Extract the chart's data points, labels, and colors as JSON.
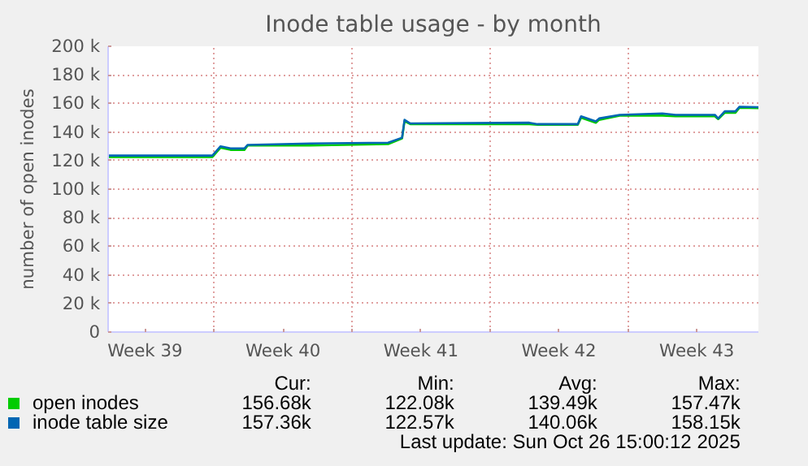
{
  "chart_data": {
    "type": "line",
    "title": "Inode table usage - by month",
    "ylabel": "number of open inodes",
    "x": [
      "2025-09-23T15:00",
      "2025-09-28T22:00",
      "2025-09-29T08:00",
      "2025-09-29T20:00",
      "2025-09-30T13:00",
      "2025-09-30T17:00",
      "2025-10-03T21:00",
      "2025-10-07T20:00",
      "2025-10-08T13:00",
      "2025-10-08T16:00",
      "2025-10-08T23:00",
      "2025-10-15T00:00",
      "2025-10-15T10:00",
      "2025-10-17T11:00",
      "2025-10-17T15:00",
      "2025-10-18T09:00",
      "2025-10-18T13:00",
      "2025-10-19T14:00",
      "2025-10-21T18:00",
      "2025-10-22T10:00",
      "2025-10-24T10:00",
      "2025-10-24T14:00",
      "2025-10-24T22:00",
      "2025-10-25T11:00",
      "2025-10-25T16:00",
      "2025-10-26T15:00"
    ],
    "series": [
      {
        "name": "open inodes",
        "color": "#00cc00",
        "values": [
          122500,
          122500,
          129000,
          127500,
          127500,
          130500,
          130500,
          131500,
          135500,
          147500,
          145500,
          145500,
          145000,
          145000,
          150000,
          146500,
          148500,
          151500,
          151500,
          151000,
          151000,
          149000,
          153500,
          153500,
          157000,
          156680
        ]
      },
      {
        "name": "inode table size",
        "color": "#0066b3",
        "values": [
          123500,
          123500,
          130000,
          128500,
          128500,
          131000,
          132000,
          132500,
          136000,
          148500,
          146000,
          146500,
          145500,
          145500,
          151000,
          147500,
          149500,
          152000,
          153000,
          152000,
          152000,
          149500,
          154500,
          154500,
          157700,
          157360
        ]
      }
    ],
    "xlim": [
      "2025-09-23T15:00",
      "2025-10-26T15:00"
    ],
    "xticks": [
      {
        "value": "2025-09-25T12:00",
        "label": "Week 39"
      },
      {
        "value": "2025-09-29T00:00",
        "label": null
      },
      {
        "value": "2025-10-02T12:00",
        "label": "Week 40"
      },
      {
        "value": "2025-10-06T00:00",
        "label": null
      },
      {
        "value": "2025-10-09T12:00",
        "label": "Week 41"
      },
      {
        "value": "2025-10-13T00:00",
        "label": null
      },
      {
        "value": "2025-10-16T12:00",
        "label": "Week 42"
      },
      {
        "value": "2025-10-20T00:00",
        "label": null
      },
      {
        "value": "2025-10-23T12:00",
        "label": "Week 43"
      }
    ],
    "ylim": [
      0,
      200000
    ],
    "yticks": [
      {
        "value": 0,
        "label": "0"
      },
      {
        "value": 20000,
        "label": "20 k"
      },
      {
        "value": 40000,
        "label": "40 k"
      },
      {
        "value": 60000,
        "label": "60 k"
      },
      {
        "value": 80000,
        "label": "80 k"
      },
      {
        "value": 100000,
        "label": "100 k"
      },
      {
        "value": 120000,
        "label": "120 k"
      },
      {
        "value": 140000,
        "label": "140 k"
      },
      {
        "value": 160000,
        "label": "160 k"
      },
      {
        "value": 180000,
        "label": "180 k"
      },
      {
        "value": 200000,
        "label": "200 k"
      }
    ],
    "grid": true,
    "legend": "bottom",
    "line_style": "solid",
    "annotations": [
      "Cur:",
      "Min:",
      "Avg:",
      "Max:",
      "156.68k",
      "122.08k",
      "139.49k",
      "157.47k",
      "157.36k",
      "122.57k",
      "140.06k",
      "158.15k",
      "Last update: Sun Oct 26 15:00:12 2025"
    ]
  }
}
